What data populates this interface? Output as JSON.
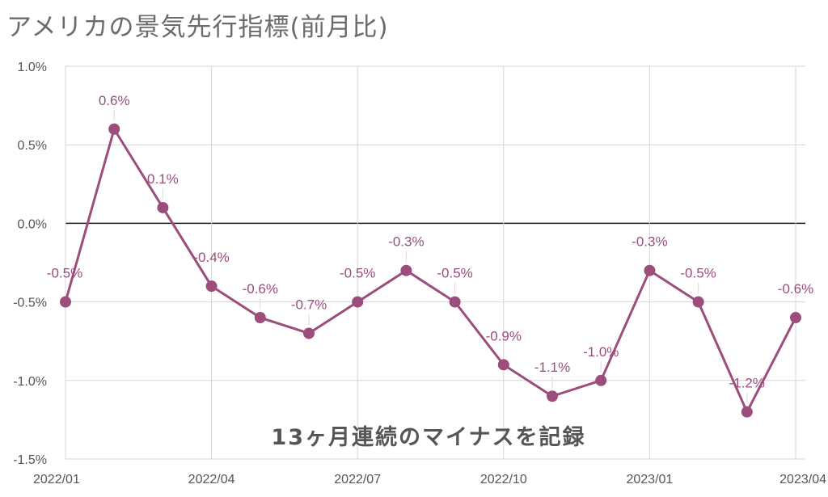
{
  "chart_data": {
    "type": "line",
    "title": "アメリカの景気先行指標(前月比)",
    "x": [
      "2022/01",
      "2022/02",
      "2022/03",
      "2022/04",
      "2022/05",
      "2022/06",
      "2022/07",
      "2022/08",
      "2022/09",
      "2022/10",
      "2022/11",
      "2022/12",
      "2023/01",
      "2023/02",
      "2023/03",
      "2023/04"
    ],
    "x_tick_labels": [
      "2022/01",
      "2022/04",
      "2022/07",
      "2022/10",
      "2023/01",
      "2023/04"
    ],
    "series": [
      {
        "values": [
          -0.5,
          0.6,
          0.1,
          -0.4,
          -0.6,
          -0.7,
          -0.5,
          -0.3,
          -0.5,
          -0.9,
          -1.1,
          -1.0,
          -0.3,
          -0.5,
          -1.2,
          -0.6
        ],
        "data_labels": [
          "-0.5%",
          "0.6%",
          "0.1%",
          "-0.4%",
          "-0.6%",
          "-0.7%",
          "-0.5%",
          "-0.3%",
          "-0.5%",
          "-0.9%",
          "-1.1%",
          "-1.0%",
          "-0.3%",
          "-0.5%",
          "-1.2%",
          "-0.6%"
        ],
        "color": "#9b4d7b"
      }
    ],
    "y_ticks": [
      1.0,
      0.5,
      0.0,
      -0.5,
      -1.0,
      -1.5
    ],
    "y_tick_labels": [
      "1.0%",
      "0.5%",
      "0.0%",
      "-0.5%",
      "-1.0%",
      "-1.5%"
    ],
    "ylim": [
      -1.5,
      1.0
    ],
    "grid": true,
    "zero_line": true,
    "annotation": "13ヶ月連続のマイナスを記録",
    "xlabel": "",
    "ylabel": ""
  }
}
